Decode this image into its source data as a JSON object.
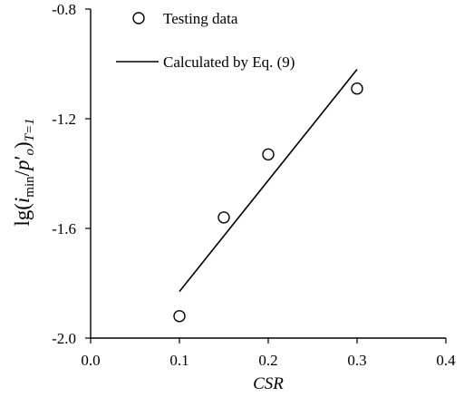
{
  "chart_data": {
    "type": "scatter",
    "xlabel": "CSR",
    "ylabel": {
      "base": "lg(",
      "i": "i",
      "min": "min",
      "slash": "/",
      "p": "p",
      "prime": "′",
      "o": "o",
      "close": ")",
      "sub": "T=1"
    },
    "xlim": [
      0.0,
      0.4
    ],
    "ylim": [
      -2.0,
      -0.8
    ],
    "xticks": [
      "0.0",
      "0.1",
      "0.2",
      "0.3",
      "0.4"
    ],
    "yticks": [
      "-0.8",
      "-1.2",
      "-1.6",
      "-2.0"
    ],
    "legend_position": "top-left",
    "series": [
      {
        "name": "Testing data",
        "kind": "markers",
        "marker": "open-circle",
        "x": [
          0.1,
          0.15,
          0.2,
          0.3
        ],
        "y": [
          -1.92,
          -1.56,
          -1.33,
          -1.09
        ]
      },
      {
        "name": "Calculated by Eq. (9)",
        "kind": "line",
        "x": [
          0.1,
          0.3
        ],
        "y": [
          -1.83,
          -1.02
        ]
      }
    ]
  }
}
